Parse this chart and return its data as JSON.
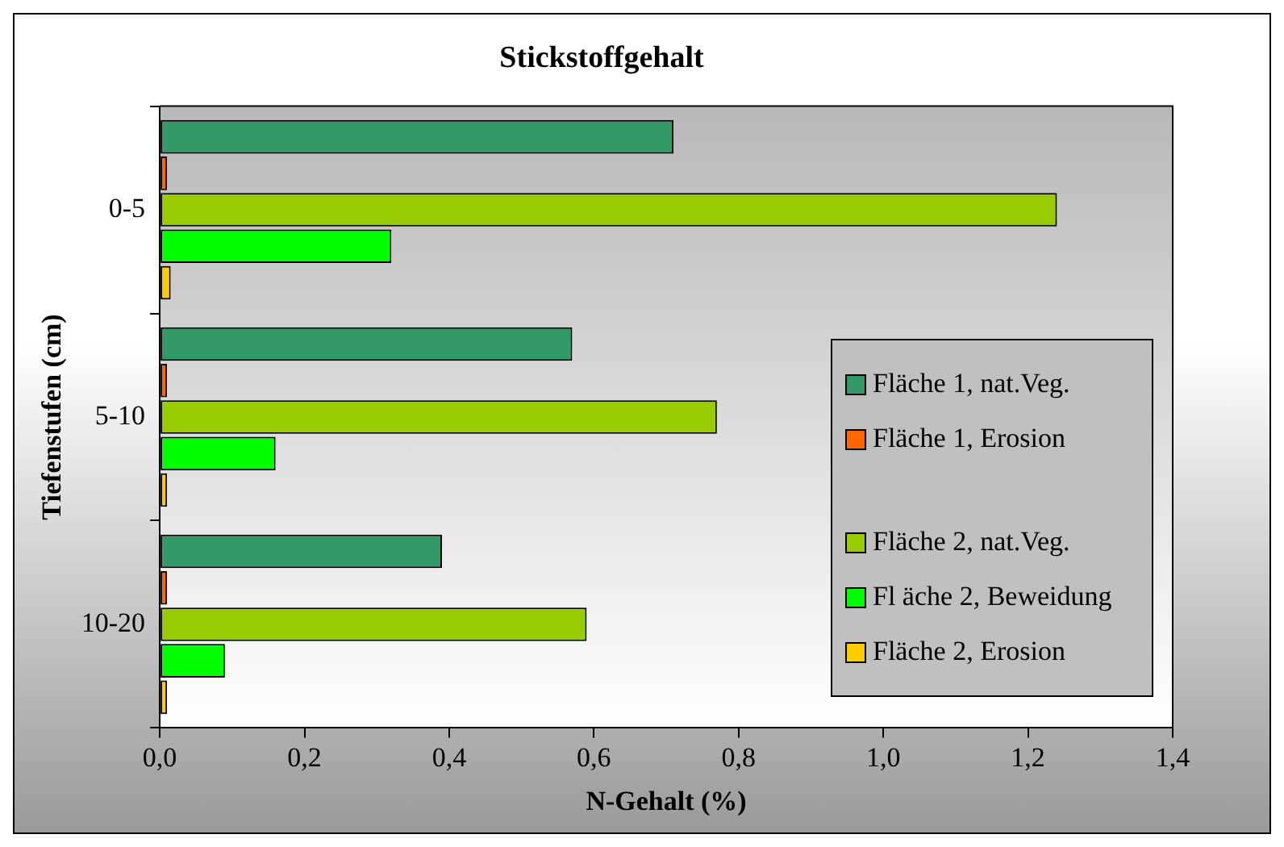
{
  "chart_data": {
    "type": "bar",
    "orientation": "horizontal",
    "title": "Stickstoffgehalt",
    "xlabel": "N-Gehalt (%)",
    "ylabel": "Tiefenstufen (cm)",
    "categories": [
      "0-5",
      "5-10",
      "10-20"
    ],
    "series": [
      {
        "name": "Fläche 1, nat.Veg.",
        "color": "#339966",
        "values": [
          0.71,
          0.57,
          0.39
        ]
      },
      {
        "name": "Fläche 1, Erosion",
        "color": "#ff6600",
        "values": [
          0.01,
          0.01,
          0.01
        ]
      },
      {
        "name": "Fläche 2, nat.Veg.",
        "color": "#99cc00",
        "values": [
          1.24,
          0.77,
          0.59
        ]
      },
      {
        "name": "Fl äche 2, Beweidung",
        "color": "#00ff00",
        "values": [
          0.32,
          0.16,
          0.09
        ]
      },
      {
        "name": "Fläche 2, Erosion",
        "color": "#ffcc00",
        "values": [
          0.015,
          0.01,
          0.01
        ]
      }
    ],
    "xlim": [
      0,
      1.4
    ],
    "xticks": [
      {
        "value": 0,
        "label": "0,0"
      },
      {
        "value": 0.2,
        "label": "0,2"
      },
      {
        "value": 0.4,
        "label": "0,4"
      },
      {
        "value": 0.6,
        "label": "0,6"
      },
      {
        "value": 0.8,
        "label": "0,8"
      },
      {
        "value": 1.0,
        "label": "1,0"
      },
      {
        "value": 1.2,
        "label": "1,2"
      },
      {
        "value": 1.4,
        "label": "1,4"
      }
    ],
    "grid": false,
    "legend": "bottom right"
  }
}
